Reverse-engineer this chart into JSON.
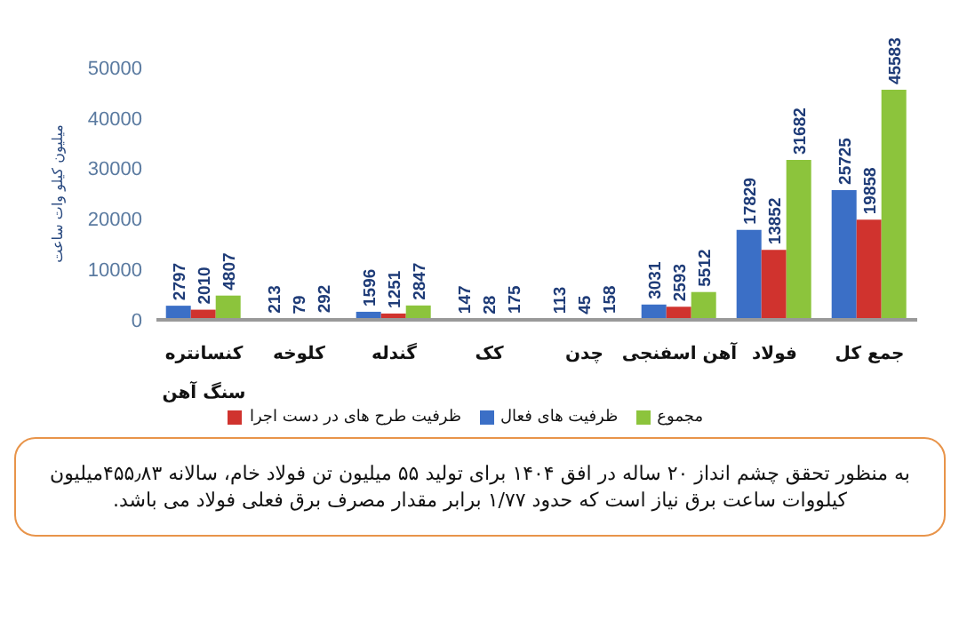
{
  "chart_data": {
    "type": "bar",
    "ylabel": "میلیون کیلو وات ساعت",
    "categories": [
      "کنسانتره سنگ آهن",
      "کلوخه",
      "گندله",
      "کک",
      "چدن",
      "آهن اسفنجی",
      "فولاد",
      "جمع کل"
    ],
    "series": [
      {
        "name": "ظرفیت های  فعال",
        "color": "#3b6fc6",
        "values": [
          2797,
          213,
          1596,
          147,
          113,
          3031,
          17829,
          25725
        ]
      },
      {
        "name": "ظرفیت طرح های در دست اجرا",
        "color": "#d0332e",
        "values": [
          2010,
          79,
          1251,
          28,
          45,
          2593,
          13852,
          19858
        ]
      },
      {
        "name": "مجموع",
        "color": "#8cc43c",
        "values": [
          4807,
          292,
          2847,
          175,
          158,
          5512,
          31682,
          45583
        ]
      }
    ],
    "ylim": [
      0,
      50000
    ],
    "yticks": [
      0,
      10000,
      20000,
      30000,
      40000,
      50000
    ],
    "grid": false,
    "legend": "bottom",
    "data_labels": true,
    "annotations": [
      "به منظور تحقق چشم  انداز ۲۰ ساله در افق ۱۴۰۴ برای تولید ۵۵ میلیون تن فولاد خام، سالانه ۴۵۵٫۸۳میلیون کیلووات ساعت برق نیاز است که حدود ۱/۷۷ برابر مقدار مصرف برق فعلی فولاد می باشد."
    ]
  }
}
